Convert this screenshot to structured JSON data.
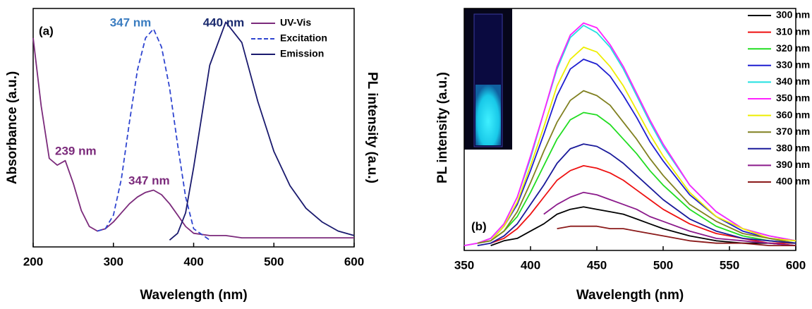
{
  "chart_data": [
    {
      "type": "line",
      "ylabel": "Absorbance (a.u.)",
      "y2label": "PL intensity (a.u.)",
      "xlabel": "Wavelength (nm)",
      "xlim": [
        200,
        600
      ],
      "xticks": [
        200,
        300,
        400,
        500,
        600
      ],
      "ylim": [
        0,
        1.05
      ],
      "annotations": [
        {
          "text": "(a)",
          "color": "#000000"
        },
        {
          "text": "239 nm",
          "color": "#7b2a7b"
        },
        {
          "text": "347 nm",
          "color": "#7b2a7b"
        },
        {
          "text": "347 nm",
          "color": "#3a7cc0"
        },
        {
          "text": "440 nm",
          "color": "#1a2a6e"
        }
      ],
      "legend": "top-right",
      "x": [
        200,
        210,
        220,
        230,
        240,
        250,
        260,
        270,
        280,
        290,
        300,
        310,
        320,
        330,
        340,
        350,
        360,
        370,
        380,
        390,
        400,
        420,
        440,
        460,
        480,
        500,
        520,
        540,
        560,
        580,
        600
      ],
      "series": [
        {
          "name": "UV-Vis",
          "color": "#7b2a7b",
          "style": "solid",
          "values": [
            0.92,
            0.62,
            0.39,
            0.36,
            0.38,
            0.28,
            0.16,
            0.09,
            0.07,
            0.08,
            0.11,
            0.15,
            0.19,
            0.22,
            0.24,
            0.25,
            0.23,
            0.19,
            0.14,
            0.09,
            0.06,
            0.05,
            0.05,
            0.04,
            0.04,
            0.04,
            0.04,
            0.04,
            0.04,
            0.04,
            0.04
          ]
        },
        {
          "name": "Excitation",
          "color": "#2f45d0",
          "style": "dashed",
          "values": [
            null,
            null,
            null,
            null,
            null,
            null,
            null,
            null,
            0.07,
            0.08,
            0.14,
            0.3,
            0.55,
            0.78,
            0.92,
            0.96,
            0.88,
            0.7,
            0.45,
            0.22,
            0.08,
            0.03,
            null,
            null,
            null,
            null,
            null,
            null,
            null,
            null,
            null
          ]
        },
        {
          "name": "Emission",
          "color": "#1a1a6e",
          "style": "solid",
          "values": [
            null,
            null,
            null,
            null,
            null,
            null,
            null,
            null,
            null,
            null,
            null,
            null,
            null,
            null,
            null,
            null,
            null,
            0.03,
            0.06,
            0.15,
            0.35,
            0.8,
            0.99,
            0.9,
            0.64,
            0.42,
            0.27,
            0.17,
            0.11,
            0.07,
            0.05
          ]
        }
      ]
    },
    {
      "type": "line",
      "ylabel": "PL intensity (a.u.)",
      "xlabel": "Wavelength (nm)",
      "xlim": [
        350,
        600
      ],
      "xticks": [
        350,
        400,
        450,
        500,
        550,
        600
      ],
      "ylim": [
        0,
        1
      ],
      "annotations": [
        {
          "text": "(b)",
          "color": "#000000"
        }
      ],
      "legend": "top-right",
      "x": [
        350,
        360,
        370,
        380,
        390,
        400,
        410,
        420,
        430,
        440,
        450,
        460,
        470,
        480,
        490,
        500,
        520,
        540,
        560,
        580,
        600
      ],
      "series": [
        {
          "name": "300 nm",
          "color": "#000000",
          "style": "solid",
          "values": [
            null,
            null,
            0.02,
            0.04,
            0.05,
            0.08,
            0.11,
            0.15,
            0.17,
            0.18,
            0.17,
            0.16,
            0.15,
            0.13,
            0.11,
            0.09,
            0.06,
            0.04,
            0.03,
            0.03,
            0.02
          ]
        },
        {
          "name": "310 nm",
          "color": "#ee1111",
          "style": "solid",
          "values": [
            null,
            null,
            0.03,
            0.05,
            0.09,
            0.15,
            0.22,
            0.29,
            0.33,
            0.35,
            0.34,
            0.32,
            0.29,
            0.25,
            0.21,
            0.17,
            0.11,
            0.07,
            0.05,
            0.03,
            0.03
          ]
        },
        {
          "name": "320 nm",
          "color": "#22dd22",
          "style": "solid",
          "values": [
            null,
            0.03,
            0.04,
            0.08,
            0.14,
            0.24,
            0.35,
            0.46,
            0.54,
            0.57,
            0.56,
            0.52,
            0.46,
            0.4,
            0.33,
            0.27,
            0.17,
            0.1,
            0.06,
            0.04,
            0.03
          ]
        },
        {
          "name": "330 nm",
          "color": "#1f1fd0",
          "style": "solid",
          "values": [
            null,
            0.03,
            0.04,
            0.1,
            0.19,
            0.33,
            0.48,
            0.64,
            0.75,
            0.79,
            0.77,
            0.72,
            0.64,
            0.55,
            0.45,
            0.37,
            0.23,
            0.14,
            0.08,
            0.05,
            0.04
          ]
        },
        {
          "name": "340 nm",
          "color": "#22e0e0",
          "style": "solid",
          "values": [
            0.02,
            0.03,
            0.05,
            0.11,
            0.22,
            0.38,
            0.57,
            0.75,
            0.88,
            0.93,
            0.9,
            0.84,
            0.75,
            0.64,
            0.53,
            0.43,
            0.27,
            0.16,
            0.09,
            0.06,
            0.04
          ]
        },
        {
          "name": "350 nm",
          "color": "#ff22ff",
          "style": "solid",
          "values": [
            0.02,
            0.03,
            0.05,
            0.11,
            0.22,
            0.39,
            0.57,
            0.76,
            0.89,
            0.94,
            0.92,
            0.85,
            0.76,
            0.65,
            0.54,
            0.44,
            0.27,
            0.16,
            0.09,
            0.06,
            0.04
          ]
        },
        {
          "name": "360 nm",
          "color": "#eeee00",
          "style": "solid",
          "values": [
            null,
            0.03,
            0.04,
            0.1,
            0.2,
            0.35,
            0.51,
            0.68,
            0.79,
            0.84,
            0.82,
            0.76,
            0.68,
            0.58,
            0.48,
            0.39,
            0.24,
            0.14,
            0.09,
            0.05,
            0.04
          ]
        },
        {
          "name": "370 nm",
          "color": "#808020",
          "style": "solid",
          "values": [
            null,
            0.03,
            0.04,
            0.08,
            0.16,
            0.28,
            0.41,
            0.53,
            0.62,
            0.66,
            0.64,
            0.6,
            0.53,
            0.46,
            0.38,
            0.31,
            0.19,
            0.12,
            0.07,
            0.05,
            0.03
          ]
        },
        {
          "name": "380 nm",
          "color": "#1a1a9a",
          "style": "solid",
          "values": [
            null,
            0.02,
            0.03,
            0.06,
            0.11,
            0.19,
            0.27,
            0.36,
            0.42,
            0.44,
            0.43,
            0.4,
            0.36,
            0.31,
            0.26,
            0.21,
            0.13,
            0.08,
            0.05,
            0.04,
            0.03
          ]
        },
        {
          "name": "390 nm",
          "color": "#8b1a8b",
          "style": "solid",
          "values": [
            null,
            null,
            null,
            null,
            null,
            null,
            0.15,
            0.19,
            0.22,
            0.24,
            0.23,
            0.21,
            0.19,
            0.17,
            0.14,
            0.12,
            0.08,
            0.05,
            0.04,
            0.03,
            0.02
          ]
        },
        {
          "name": "400 nm",
          "color": "#8b1a1a",
          "style": "solid",
          "values": [
            null,
            null,
            null,
            null,
            null,
            null,
            null,
            0.09,
            0.1,
            0.1,
            0.1,
            0.09,
            0.09,
            0.08,
            0.07,
            0.06,
            0.04,
            0.03,
            0.03,
            0.02,
            0.02
          ]
        }
      ]
    }
  ]
}
